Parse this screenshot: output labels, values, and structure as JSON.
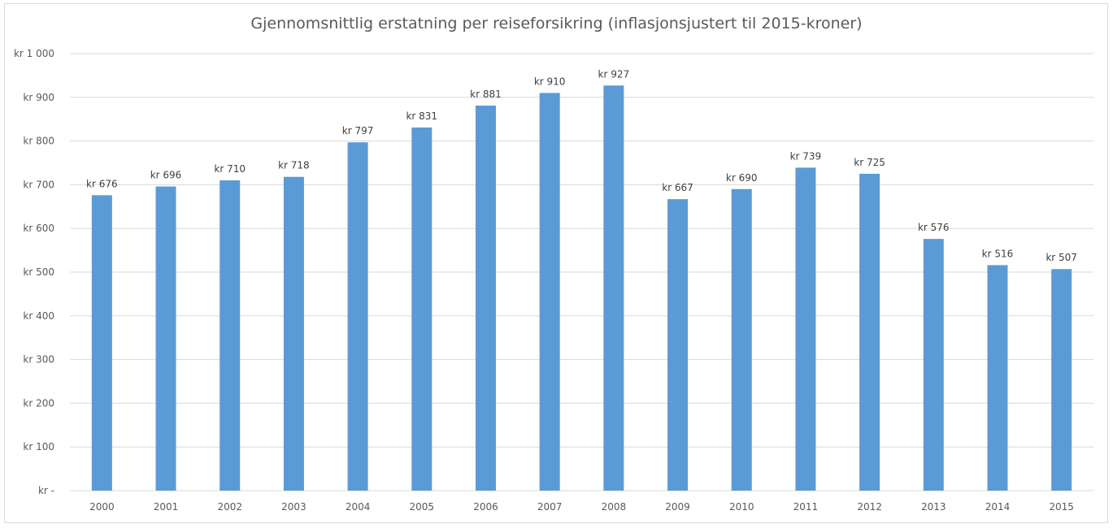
{
  "chart_data": {
    "type": "bar",
    "title": "Gjennomsnittlig erstatning per reiseforsikring (inflasjonsjustert til 2015-kroner)",
    "xlabel": "",
    "ylabel": "",
    "categories": [
      "2000",
      "2001",
      "2002",
      "2003",
      "2004",
      "2005",
      "2006",
      "2007",
      "2008",
      "2009",
      "2010",
      "2011",
      "2012",
      "2013",
      "2014",
      "2015"
    ],
    "values": [
      676,
      696,
      710,
      718,
      797,
      831,
      881,
      910,
      927,
      667,
      690,
      739,
      725,
      576,
      516,
      507
    ],
    "data_labels": [
      "kr  676",
      "kr  696",
      "kr  710",
      "kr  718",
      "kr  797",
      "kr  831",
      "kr  881",
      "kr  910",
      "kr  927",
      "kr  667",
      "kr  690",
      "kr  739",
      "kr  725",
      "kr  576",
      "kr  516",
      "kr  507"
    ],
    "ylim": [
      0,
      1000
    ],
    "y_ticks": [
      0,
      100,
      200,
      300,
      400,
      500,
      600,
      700,
      800,
      900,
      1000
    ],
    "y_tick_labels": [
      "kr -",
      "kr  100",
      "kr  200",
      "kr  300",
      "kr  400",
      "kr  500",
      "kr  600",
      "kr  700",
      "kr  800",
      "kr  900",
      "kr 1 000"
    ],
    "grid": true,
    "legend": "none",
    "bar_color": "#5b9bd5",
    "grid_color": "#d9d9d9"
  }
}
